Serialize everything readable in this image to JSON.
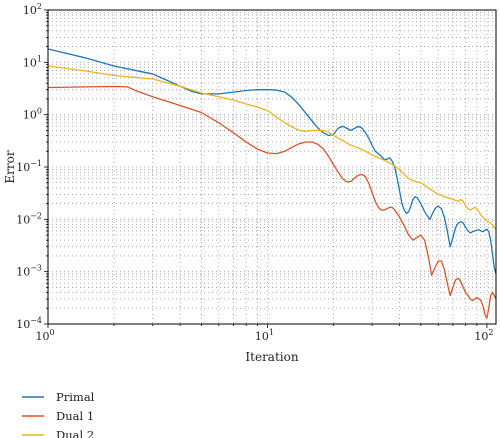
{
  "chart_data": {
    "type": "line",
    "xlabel": "Iteration",
    "ylabel": "Error",
    "xscale": "log",
    "yscale": "log",
    "xlim": [
      1,
      110
    ],
    "ylim": [
      0.0001,
      100
    ],
    "grid": true,
    "legend_position": "below-left",
    "x_ticks": [
      {
        "value": 1,
        "base": "10",
        "exp": "0"
      },
      {
        "value": 10,
        "base": "10",
        "exp": "1"
      },
      {
        "value": 100,
        "base": "10",
        "exp": "2"
      }
    ],
    "y_ticks": [
      {
        "value": 100,
        "base": "10",
        "exp": "2"
      },
      {
        "value": 10,
        "base": "10",
        "exp": "1"
      },
      {
        "value": 1,
        "base": "10",
        "exp": "0"
      },
      {
        "value": 0.1,
        "base": "10",
        "exp": "−1"
      },
      {
        "value": 0.01,
        "base": "10",
        "exp": "−2"
      },
      {
        "value": 0.001,
        "base": "10",
        "exp": "−3"
      },
      {
        "value": 0.0001,
        "base": "10",
        "exp": "−4"
      }
    ],
    "series": [
      {
        "name": "Primal",
        "color": "#1f77b4",
        "points": [
          [
            1,
            18
          ],
          [
            1.5,
            12
          ],
          [
            2,
            8.5
          ],
          [
            2.5,
            7
          ],
          [
            3,
            6
          ],
          [
            3.5,
            4.5
          ],
          [
            4,
            3.5
          ],
          [
            4.5,
            2.8
          ],
          [
            5,
            2.5
          ],
          [
            6,
            2.5
          ],
          [
            7,
            2.7
          ],
          [
            8,
            2.9
          ],
          [
            9,
            3.0
          ],
          [
            10,
            3.0
          ],
          [
            11,
            2.95
          ],
          [
            12,
            2.7
          ],
          [
            13,
            2.1
          ],
          [
            14,
            1.5
          ],
          [
            15,
            1.05
          ],
          [
            16,
            0.75
          ],
          [
            17,
            0.55
          ],
          [
            18,
            0.45
          ],
          [
            19,
            0.4
          ],
          [
            20,
            0.42
          ],
          [
            21,
            0.55
          ],
          [
            22,
            0.6
          ],
          [
            23,
            0.55
          ],
          [
            24,
            0.5
          ],
          [
            25,
            0.55
          ],
          [
            26,
            0.6
          ],
          [
            27,
            0.55
          ],
          [
            28,
            0.45
          ],
          [
            29,
            0.35
          ],
          [
            30,
            0.26
          ],
          [
            31,
            0.2
          ],
          [
            32,
            0.18
          ],
          [
            33,
            0.16
          ],
          [
            34,
            0.14
          ],
          [
            35,
            0.14
          ],
          [
            36,
            0.15
          ],
          [
            37,
            0.13
          ],
          [
            38,
            0.1
          ],
          [
            39,
            0.06
          ],
          [
            40,
            0.035
          ],
          [
            41,
            0.02
          ],
          [
            42,
            0.015
          ],
          [
            43,
            0.013
          ],
          [
            44,
            0.014
          ],
          [
            45,
            0.018
          ],
          [
            46,
            0.024
          ],
          [
            47,
            0.027
          ],
          [
            48,
            0.026
          ],
          [
            50,
            0.02
          ],
          [
            52,
            0.014
          ],
          [
            54,
            0.011
          ],
          [
            55,
            0.01
          ],
          [
            56,
            0.012
          ],
          [
            58,
            0.016
          ],
          [
            60,
            0.018
          ],
          [
            62,
            0.016
          ],
          [
            64,
            0.011
          ],
          [
            66,
            0.006
          ],
          [
            68,
            0.003
          ],
          [
            70,
            0.0045
          ],
          [
            72,
            0.007
          ],
          [
            74,
            0.0085
          ],
          [
            76,
            0.009
          ],
          [
            78,
            0.0085
          ],
          [
            80,
            0.007
          ],
          [
            82,
            0.006
          ],
          [
            84,
            0.0055
          ],
          [
            86,
            0.0058
          ],
          [
            88,
            0.006
          ],
          [
            90,
            0.0062
          ],
          [
            92,
            0.0063
          ],
          [
            94,
            0.006
          ],
          [
            96,
            0.0058
          ],
          [
            98,
            0.0062
          ],
          [
            100,
            0.0065
          ],
          [
            102,
            0.0058
          ],
          [
            104,
            0.004
          ],
          [
            106,
            0.0022
          ],
          [
            108,
            0.0012
          ],
          [
            110,
            0.0009
          ]
        ]
      },
      {
        "name": "Dual 1",
        "color": "#d9532c",
        "points": [
          [
            1,
            3.3
          ],
          [
            1.5,
            3.4
          ],
          [
            2,
            3.45
          ],
          [
            2.3,
            3.4
          ],
          [
            2.5,
            2.9
          ],
          [
            3,
            2.2
          ],
          [
            4,
            1.5
          ],
          [
            5,
            1.1
          ],
          [
            6,
            0.7
          ],
          [
            7,
            0.45
          ],
          [
            8,
            0.3
          ],
          [
            9,
            0.22
          ],
          [
            10,
            0.185
          ],
          [
            11,
            0.18
          ],
          [
            12,
            0.2
          ],
          [
            13,
            0.24
          ],
          [
            14,
            0.28
          ],
          [
            15,
            0.3
          ],
          [
            16,
            0.3
          ],
          [
            17,
            0.27
          ],
          [
            18,
            0.22
          ],
          [
            19,
            0.16
          ],
          [
            20,
            0.11
          ],
          [
            21,
            0.08
          ],
          [
            22,
            0.06
          ],
          [
            23,
            0.052
          ],
          [
            24,
            0.053
          ],
          [
            25,
            0.062
          ],
          [
            26,
            0.07
          ],
          [
            27,
            0.072
          ],
          [
            28,
            0.065
          ],
          [
            29,
            0.048
          ],
          [
            30,
            0.032
          ],
          [
            31,
            0.022
          ],
          [
            32,
            0.017
          ],
          [
            33,
            0.015
          ],
          [
            34,
            0.015
          ],
          [
            35,
            0.016
          ],
          [
            36,
            0.017
          ],
          [
            37,
            0.017
          ],
          [
            38,
            0.015
          ],
          [
            40,
            0.011
          ],
          [
            42,
            0.0075
          ],
          [
            44,
            0.005
          ],
          [
            46,
            0.004
          ],
          [
            48,
            0.0045
          ],
          [
            50,
            0.005
          ],
          [
            52,
            0.004
          ],
          [
            54,
            0.002
          ],
          [
            56,
            0.00085
          ],
          [
            58,
            0.0012
          ],
          [
            60,
            0.0016
          ],
          [
            62,
            0.0016
          ],
          [
            64,
            0.0011
          ],
          [
            66,
            0.0006
          ],
          [
            68,
            0.00035
          ],
          [
            70,
            0.0005
          ],
          [
            72,
            0.0007
          ],
          [
            74,
            0.00075
          ],
          [
            76,
            0.00065
          ],
          [
            78,
            0.0005
          ],
          [
            80,
            0.0004
          ],
          [
            82,
            0.00035
          ],
          [
            84,
            0.0003
          ],
          [
            86,
            0.00028
          ],
          [
            88,
            0.0003
          ],
          [
            90,
            0.00032
          ],
          [
            92,
            0.0003
          ],
          [
            94,
            0.00028
          ],
          [
            96,
            0.00022
          ],
          [
            98,
            0.00015
          ],
          [
            100,
            0.00013
          ],
          [
            102,
            0.0002
          ],
          [
            104,
            0.00035
          ],
          [
            106,
            0.0004
          ],
          [
            108,
            0.00035
          ],
          [
            110,
            0.0003
          ]
        ]
      },
      {
        "name": "Dual 2",
        "color": "#e8b520",
        "points": [
          [
            1,
            8.5
          ],
          [
            1.5,
            6.8
          ],
          [
            2,
            5.6
          ],
          [
            3,
            4.8
          ],
          [
            4,
            3.5
          ],
          [
            5,
            2.6
          ],
          [
            6,
            2.2
          ],
          [
            7,
            1.9
          ],
          [
            8,
            1.6
          ],
          [
            9,
            1.4
          ],
          [
            10,
            1.2
          ],
          [
            11,
            0.9
          ],
          [
            12,
            0.7
          ],
          [
            13,
            0.58
          ],
          [
            14,
            0.5
          ],
          [
            15,
            0.48
          ],
          [
            16,
            0.5
          ],
          [
            17,
            0.5
          ],
          [
            18,
            0.5
          ],
          [
            19,
            0.46
          ],
          [
            20,
            0.4
          ],
          [
            22,
            0.32
          ],
          [
            24,
            0.26
          ],
          [
            26,
            0.23
          ],
          [
            28,
            0.2
          ],
          [
            30,
            0.17
          ],
          [
            32,
            0.15
          ],
          [
            34,
            0.135
          ],
          [
            36,
            0.12
          ],
          [
            38,
            0.105
          ],
          [
            40,
            0.09
          ],
          [
            42,
            0.072
          ],
          [
            44,
            0.06
          ],
          [
            46,
            0.055
          ],
          [
            48,
            0.052
          ],
          [
            50,
            0.05
          ],
          [
            52,
            0.045
          ],
          [
            54,
            0.04
          ],
          [
            56,
            0.036
          ],
          [
            58,
            0.033
          ],
          [
            60,
            0.03
          ],
          [
            62,
            0.029
          ],
          [
            64,
            0.027
          ],
          [
            66,
            0.026
          ],
          [
            68,
            0.025
          ],
          [
            70,
            0.024
          ],
          [
            72,
            0.023
          ],
          [
            74,
            0.022
          ],
          [
            76,
            0.024
          ],
          [
            78,
            0.022
          ],
          [
            80,
            0.018
          ],
          [
            82,
            0.016
          ],
          [
            84,
            0.015
          ],
          [
            86,
            0.016
          ],
          [
            88,
            0.017
          ],
          [
            90,
            0.016
          ],
          [
            92,
            0.014
          ],
          [
            94,
            0.012
          ],
          [
            96,
            0.011
          ],
          [
            98,
            0.01
          ],
          [
            100,
            0.0095
          ],
          [
            102,
            0.009
          ],
          [
            104,
            0.0085
          ],
          [
            106,
            0.0078
          ],
          [
            108,
            0.007
          ],
          [
            110,
            0.0065
          ]
        ]
      }
    ]
  }
}
